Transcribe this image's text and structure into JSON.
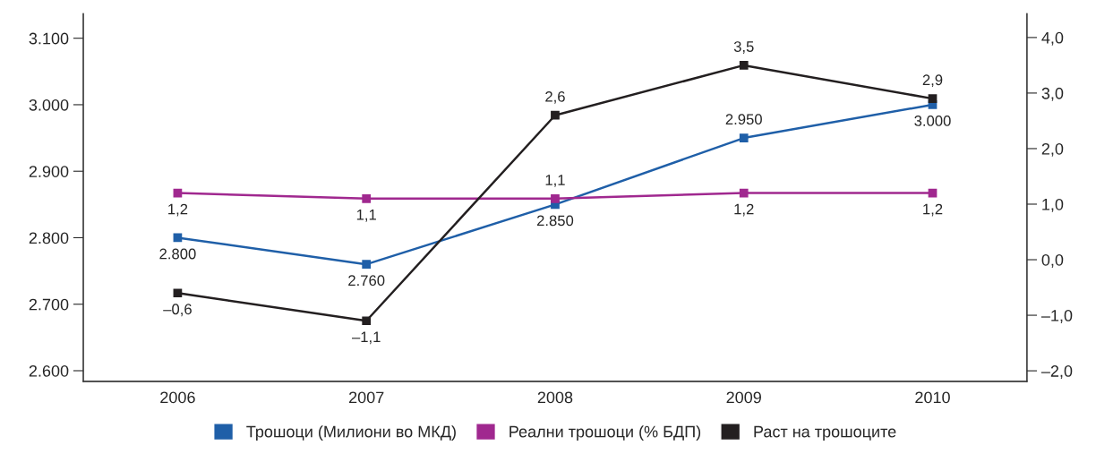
{
  "chart_data": {
    "type": "line",
    "categories": [
      "2006",
      "2007",
      "2008",
      "2009",
      "2010"
    ],
    "series": [
      {
        "name": "Трошоци (Милиони во МКД)",
        "color": "#1f5fa8",
        "values": [
          2800,
          2760,
          2850,
          2950,
          3000
        ],
        "value_labels": [
          "2.800",
          "2.760",
          "2.850",
          "2.950",
          "3.000"
        ]
      },
      {
        "name": "Реални трошоци (% БДП)",
        "color": "#a0288f",
        "axis": "y2",
        "values": [
          1.2,
          1.1,
          1.1,
          1.2,
          1.2
        ],
        "value_labels": [
          "1,2",
          "1,1",
          "1,1",
          "1,2",
          "1,2"
        ]
      },
      {
        "name": "Раст на трошоците",
        "color": "#231f20",
        "axis": "y2",
        "values": [
          -0.6,
          -1.1,
          2.6,
          3.5,
          2.9
        ],
        "value_labels": [
          "–0,6",
          "–1,1",
          "2,6",
          "3,5",
          "2,9"
        ]
      }
    ],
    "ylim": [
      2584,
      3137
    ],
    "yticks": [
      {
        "value": 2600,
        "label": "2.600"
      },
      {
        "value": 2700,
        "label": "2.700"
      },
      {
        "value": 2800,
        "label": "2.800"
      },
      {
        "value": 2900,
        "label": "2.900"
      },
      {
        "value": 3000,
        "label": "3.000"
      },
      {
        "value": 3100,
        "label": "3.100"
      }
    ],
    "y2lim": [
      -2.19,
      4.43
    ],
    "y2ticks": [
      {
        "value": -2,
        "label": "–2,0"
      },
      {
        "value": -1,
        "label": "–1,0"
      },
      {
        "value": 0,
        "label": "0,0"
      },
      {
        "value": 1,
        "label": "1,0"
      },
      {
        "value": 2,
        "label": "2,0"
      },
      {
        "value": 3,
        "label": "3,0"
      },
      {
        "value": 4,
        "label": "4,0"
      }
    ],
    "marker": "square",
    "line_style": "solid",
    "grid": false,
    "legend": "bottom"
  }
}
